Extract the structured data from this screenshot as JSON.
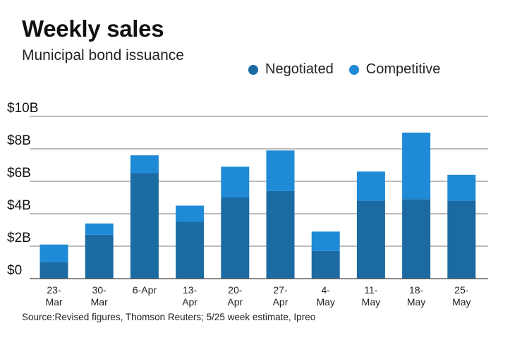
{
  "title": "Weekly sales",
  "subtitle": "Municipal bond issuance",
  "source": "Source:Revised figures, Thomson Reuters; 5/25 week estimate, Ipreo",
  "colors": {
    "negotiated": "#1c6aa2",
    "competitive": "#1f8ad6",
    "grid": "#7a7a7a",
    "axis": "#444444"
  },
  "chart_data": {
    "type": "bar",
    "stacked": true,
    "categories": [
      [
        "23-",
        "Mar"
      ],
      [
        "30-",
        "Mar"
      ],
      [
        "6-Apr"
      ],
      [
        "13-",
        "Apr"
      ],
      [
        "20-",
        "Apr"
      ],
      [
        "27-",
        "Apr"
      ],
      [
        "4-",
        "May"
      ],
      [
        "11-",
        "May"
      ],
      [
        "18-",
        "May"
      ],
      [
        "25-",
        "May"
      ]
    ],
    "series": [
      {
        "name": "Negotiated",
        "values": [
          1.0,
          2.7,
          6.5,
          3.5,
          5.0,
          5.4,
          1.7,
          4.8,
          4.9,
          4.8
        ]
      },
      {
        "name": "Competitive",
        "values": [
          1.1,
          0.7,
          1.1,
          1.0,
          1.9,
          2.5,
          1.2,
          1.8,
          4.1,
          1.6
        ]
      }
    ],
    "yticks": [
      "$0",
      "$2B",
      "$4B",
      "$6B",
      "$8B",
      "$10B"
    ],
    "ylim": [
      0,
      10
    ],
    "grid": true,
    "legend_position": "top-right"
  }
}
